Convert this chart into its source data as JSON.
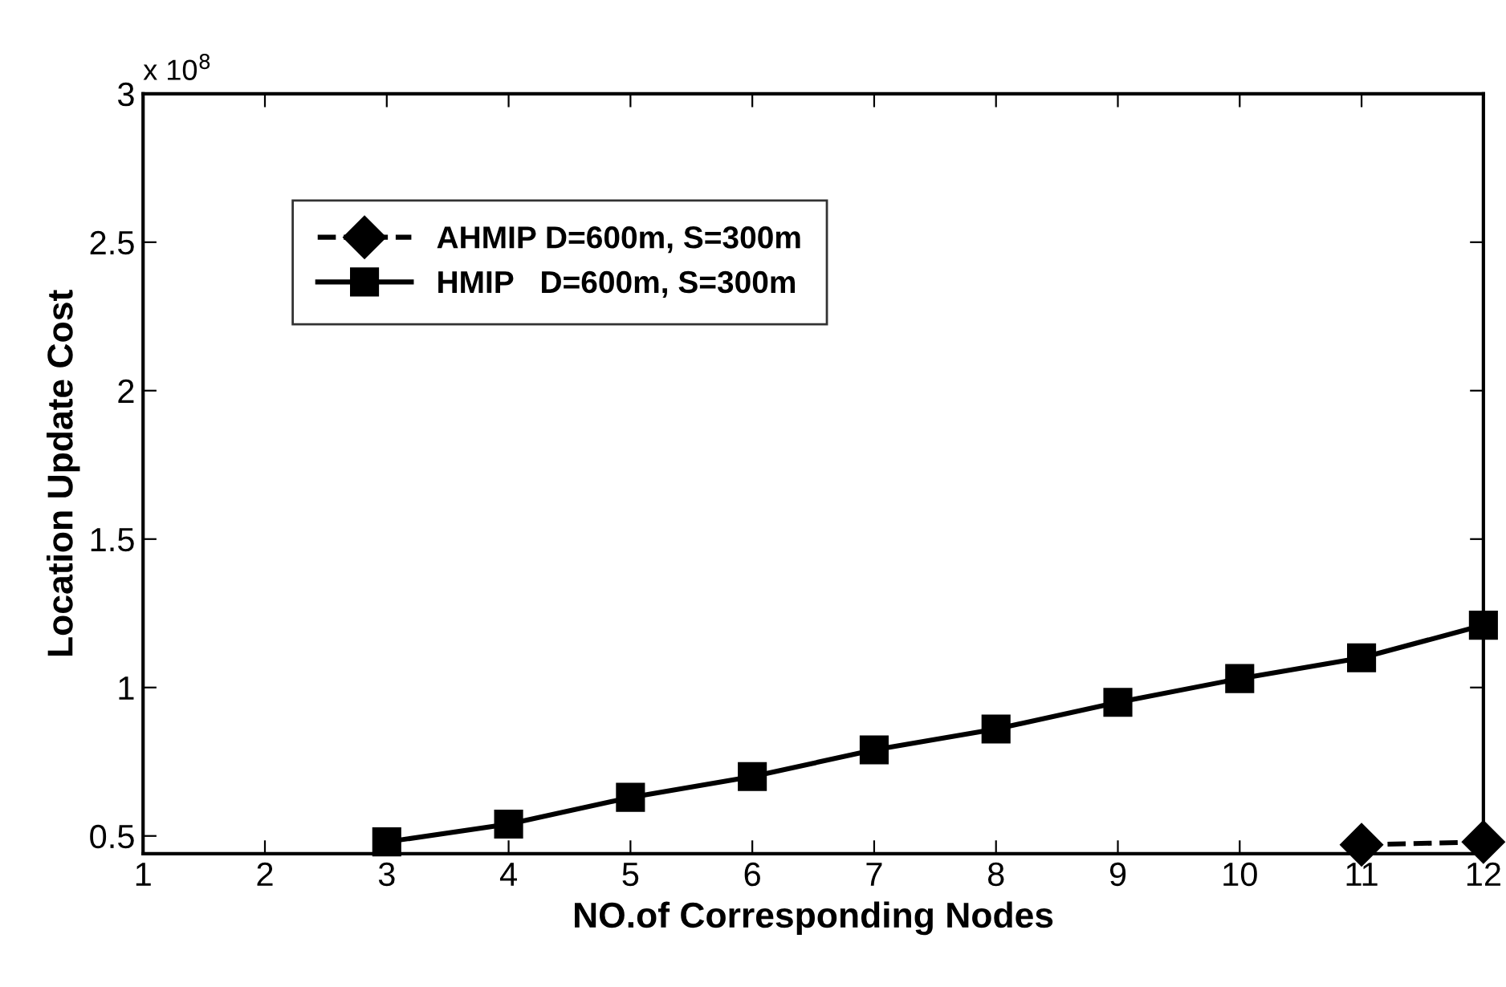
{
  "chart_data": {
    "type": "line",
    "xlabel": "NO.of Corresponding Nodes",
    "ylabel": "Location Update Cost",
    "annotations": [
      "x 10$^{8}$"
    ],
    "series": [
      {
        "name": "AHMIP D=600m, S=300m",
        "color": "#000000",
        "marker": "diamond",
        "line_style": "dashed",
        "x": [
          11,
          12
        ],
        "values": [
          0.47,
          0.48
        ]
      },
      {
        "name": "HMIP   D=600m, S=300m",
        "color": "#000000",
        "marker": "square",
        "line_style": "solid",
        "x": [
          3,
          4,
          5,
          6,
          7,
          8,
          9,
          10,
          11,
          12
        ],
        "values": [
          0.48,
          0.54,
          0.63,
          0.7,
          0.79,
          0.86,
          0.95,
          1.03,
          1.1,
          1.21
        ]
      }
    ],
    "xlim": [
      1,
      12
    ],
    "xticks": [
      1,
      2,
      3,
      4,
      5,
      6,
      7,
      8,
      9,
      10,
      11,
      12
    ],
    "ylim": [
      0.44,
      3
    ],
    "yticks": [
      0.5,
      1,
      1.5,
      2,
      2.5,
      3
    ],
    "grid": false,
    "legend": "top left"
  }
}
